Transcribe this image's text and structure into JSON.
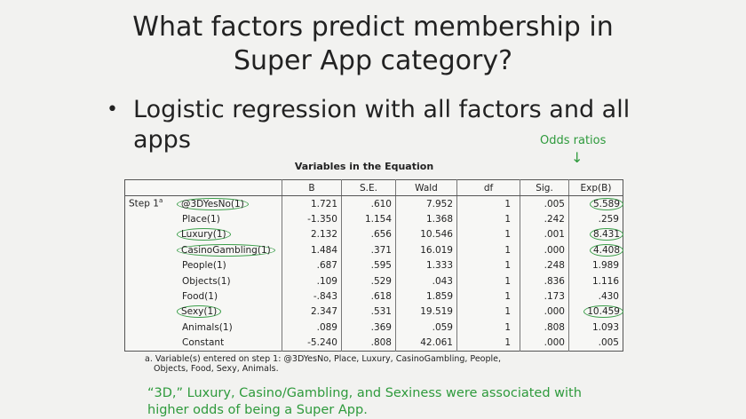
{
  "slide": {
    "title_line1": "What factors predict membership in",
    "title_line2": "Super App category?",
    "bullet": "•",
    "bullet_text_line1": "Logistic regression with all factors and all",
    "bullet_text_line2": "apps",
    "odds_label": "Odds ratios",
    "odds_arrow": "↓",
    "footnote_line1": "a. Variable(s) entered on step 1: @3DYesNo, Place, Luxury, CasinoGambling, People,",
    "footnote_line2": "Objects, Food, Sexy, Animals.",
    "conclusion_line1": "“3D,” Luxury, Casino/Gambling, and Sexiness were associated with",
    "conclusion_line2": "higher odds of being a Super App."
  },
  "table": {
    "title": "Variables in the Equation",
    "headers": [
      "B",
      "S.E.",
      "Wald",
      "df",
      "Sig.",
      "Exp(B)"
    ],
    "step_label": "Step 1",
    "step_sup": "a",
    "rows": [
      {
        "name": "@3DYesNo(1)",
        "b": "1.721",
        "se": ".610",
        "wald": "7.952",
        "df": "1",
        "sig": ".005",
        "expb": "5.589"
      },
      {
        "name": "Place(1)",
        "b": "-1.350",
        "se": "1.154",
        "wald": "1.368",
        "df": "1",
        "sig": ".242",
        "expb": ".259"
      },
      {
        "name": "Luxury(1)",
        "b": "2.132",
        "se": ".656",
        "wald": "10.546",
        "df": "1",
        "sig": ".001",
        "expb": "8.431"
      },
      {
        "name": "CasinoGambling(1)",
        "b": "1.484",
        "se": ".371",
        "wald": "16.019",
        "df": "1",
        "sig": ".000",
        "expb": "4.408"
      },
      {
        "name": "People(1)",
        "b": ".687",
        "se": ".595",
        "wald": "1.333",
        "df": "1",
        "sig": ".248",
        "expb": "1.989"
      },
      {
        "name": "Objects(1)",
        "b": ".109",
        "se": ".529",
        "wald": ".043",
        "df": "1",
        "sig": ".836",
        "expb": "1.116"
      },
      {
        "name": "Food(1)",
        "b": "-.843",
        "se": ".618",
        "wald": "1.859",
        "df": "1",
        "sig": ".173",
        "expb": ".430"
      },
      {
        "name": "Sexy(1)",
        "b": "2.347",
        "se": ".531",
        "wald": "19.519",
        "df": "1",
        "sig": ".000",
        "expb": "10.459"
      },
      {
        "name": "Animals(1)",
        "b": ".089",
        "se": ".369",
        "wald": ".059",
        "df": "1",
        "sig": ".808",
        "expb": "1.093"
      },
      {
        "name": "Constant",
        "b": "-5.240",
        "se": ".808",
        "wald": "42.061",
        "df": "1",
        "sig": ".000",
        "expb": ".005"
      }
    ],
    "highlight_color": "#3b9e4a"
  }
}
